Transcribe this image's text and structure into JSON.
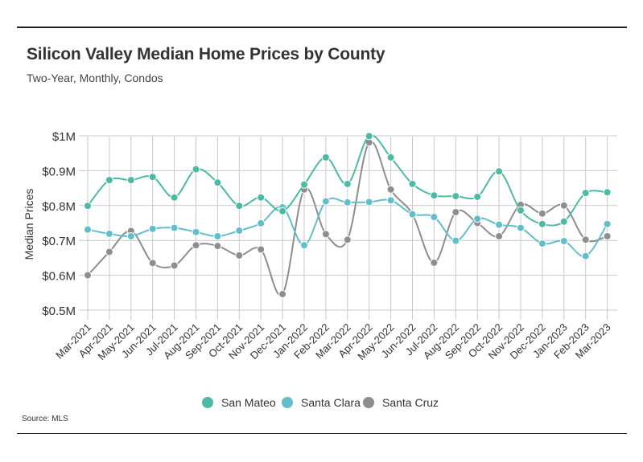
{
  "header": {
    "title": "Silicon Valley Median Home Prices by County",
    "subtitle": "Two-Year, Monthly, Condos"
  },
  "footer": {
    "source": "Source:  MLS"
  },
  "chart_data": {
    "type": "line",
    "title": "Silicon Valley Median Home Prices by County",
    "subtitle": "Two-Year, Monthly, Condos",
    "xlabel": "",
    "ylabel": "Median Prices",
    "ylim": [
      0.5,
      1.0
    ],
    "yticks": [
      1.0,
      0.9,
      0.8,
      0.7,
      0.6,
      0.5
    ],
    "ytick_labels": [
      "$1M",
      "$0.9M",
      "$0.8M",
      "$0.7M",
      "$0.6M",
      "$0.5M"
    ],
    "grid": true,
    "legend_position": "bottom",
    "categories": [
      "Mar-2021",
      "Apr-2021",
      "May-2021",
      "Jun-2021",
      "Jul-2021",
      "Aug-2021",
      "Sep-2021",
      "Oct-2021",
      "Nov-2021",
      "Dec-2021",
      "Jan-2022",
      "Feb-2022",
      "Mar-2022",
      "Apr-2022",
      "May-2022",
      "Jun-2022",
      "Jul-2022",
      "Aug-2022",
      "Sep-2022",
      "Oct-2022",
      "Nov-2022",
      "Dec-2022",
      "Jan-2023",
      "Feb-2023",
      "Mar-2023"
    ],
    "series": [
      {
        "name": "San Mateo",
        "color": "#4dbaa6",
        "values": [
          0.799,
          0.873,
          0.873,
          0.882,
          0.823,
          0.904,
          0.866,
          0.799,
          0.823,
          0.784,
          0.86,
          0.938,
          0.862,
          0.999,
          0.938,
          0.862,
          0.829,
          0.827,
          0.825,
          0.898,
          0.786,
          0.747,
          0.754,
          0.836,
          0.838
        ]
      },
      {
        "name": "Santa Clara",
        "color": "#62bfca",
        "values": [
          0.731,
          0.719,
          0.712,
          0.733,
          0.736,
          0.724,
          0.712,
          0.728,
          0.749,
          0.795,
          0.686,
          0.812,
          0.809,
          0.81,
          0.815,
          0.775,
          0.767,
          0.699,
          0.762,
          0.745,
          0.736,
          0.691,
          0.698,
          0.655,
          0.747
        ]
      },
      {
        "name": "Santa Cruz",
        "color": "#8e8e8e",
        "values": [
          0.6,
          0.667,
          0.727,
          0.635,
          0.628,
          0.686,
          0.684,
          0.657,
          0.674,
          0.546,
          0.846,
          0.718,
          0.702,
          0.981,
          0.846,
          0.775,
          0.636,
          0.781,
          0.75,
          0.712,
          0.802,
          0.777,
          0.8,
          0.702,
          0.712
        ]
      }
    ]
  }
}
